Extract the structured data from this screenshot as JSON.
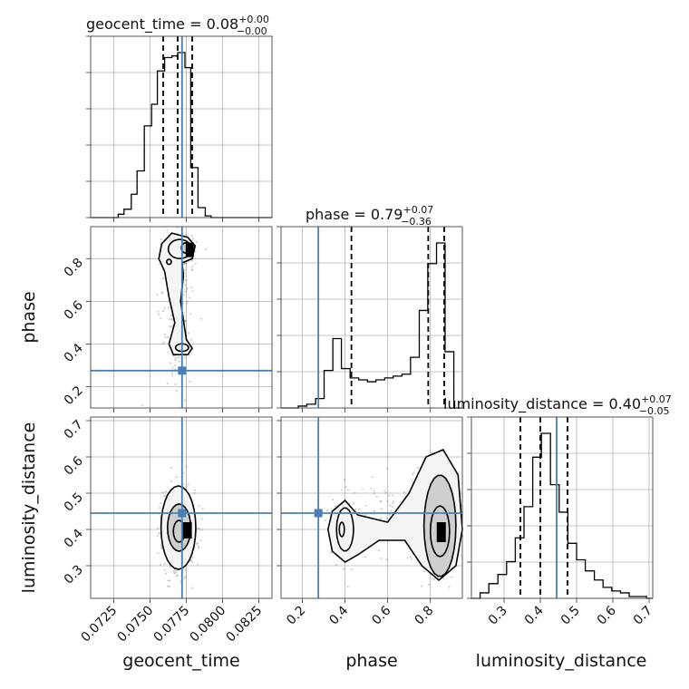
{
  "chart_data": {
    "type": "corner",
    "parameters": [
      "geocent_time",
      "phase",
      "luminosity_distance"
    ],
    "axis_labels": [
      "geocent_time",
      "phase",
      "luminosity_distance"
    ],
    "titles": {
      "geocent_time": {
        "name": "geocent_time",
        "median": "0.08",
        "plus": "+0.00",
        "minus": "−0.00"
      },
      "phase": {
        "name": "phase",
        "median": "0.79",
        "plus": "+0.07",
        "minus": "−0.36"
      },
      "luminosity_distance": {
        "name": "luminosity_distance",
        "median": "0.40",
        "plus": "+0.07",
        "minus": "−0.05"
      }
    },
    "ranges": {
      "geocent_time": [
        0.0709,
        0.0834
      ],
      "phase": [
        0.1,
        0.95
      ],
      "luminosity_distance": [
        0.21,
        0.71
      ]
    },
    "ticks": {
      "geocent_time": {
        "values": [
          0.0725,
          0.075,
          0.0775,
          0.08,
          0.0825
        ],
        "labels": [
          "0.0725",
          "0.0750",
          "0.0775",
          "0.0800",
          "0.0825"
        ]
      },
      "phase": {
        "values": [
          0.2,
          0.4,
          0.6,
          0.8
        ],
        "labels": [
          "0.2",
          "0.4",
          "0.6",
          "0.8"
        ]
      },
      "luminosity_distance": {
        "values": [
          0.3,
          0.4,
          0.5,
          0.6,
          0.7
        ],
        "labels": [
          "0.3",
          "0.4",
          "0.5",
          "0.6",
          "0.7"
        ]
      }
    },
    "truths": {
      "geocent_time": 0.0772,
      "phase": 0.275,
      "luminosity_distance": 0.445
    },
    "quantiles": {
      "geocent_time": [
        0.0759,
        0.0769,
        0.0779
      ],
      "phase": [
        0.43,
        0.79,
        0.865
      ],
      "luminosity_distance": [
        0.345,
        0.4,
        0.475
      ]
    },
    "histograms": {
      "geocent_time": {
        "edges": [
          0.0709,
          0.0714,
          0.0718,
          0.0723,
          0.0728,
          0.0732,
          0.0737,
          0.0741,
          0.0746,
          0.0751,
          0.0755,
          0.076,
          0.0765,
          0.0769,
          0.0774,
          0.0778,
          0.0783,
          0.0788,
          0.0792,
          0.0797,
          0.0802,
          0.0806,
          0.0811,
          0.0816,
          0.082,
          0.0825,
          0.0829,
          0.0834
        ],
        "counts": [
          0,
          0,
          0,
          0,
          2,
          5,
          14,
          28,
          55,
          68,
          88,
          96,
          97,
          99,
          90,
          30,
          6,
          1,
          0,
          0,
          0,
          0,
          0,
          0,
          0,
          0,
          0
        ]
      },
      "phase": {
        "edges": [
          0.1,
          0.1405,
          0.181,
          0.221,
          0.262,
          0.302,
          0.343,
          0.383,
          0.424,
          0.464,
          0.505,
          0.545,
          0.586,
          0.626,
          0.667,
          0.707,
          0.748,
          0.788,
          0.829,
          0.869,
          0.91,
          0.95
        ],
        "counts": [
          0,
          0,
          1,
          2,
          5,
          20,
          37,
          21,
          16,
          15,
          14,
          15,
          16,
          17,
          18,
          27,
          52,
          77,
          88,
          30,
          0
        ]
      },
      "luminosity_distance": {
        "edges": [
          0.21,
          0.234,
          0.258,
          0.283,
          0.307,
          0.331,
          0.355,
          0.379,
          0.403,
          0.428,
          0.452,
          0.476,
          0.5,
          0.524,
          0.549,
          0.573,
          0.597,
          0.621,
          0.645,
          0.669,
          0.693,
          0.71
        ],
        "counts": [
          0,
          3,
          8,
          13,
          20,
          33,
          50,
          77,
          90,
          62,
          47,
          30,
          21,
          15,
          10,
          6,
          4,
          3,
          1,
          1,
          0
        ]
      }
    },
    "grid": true
  }
}
